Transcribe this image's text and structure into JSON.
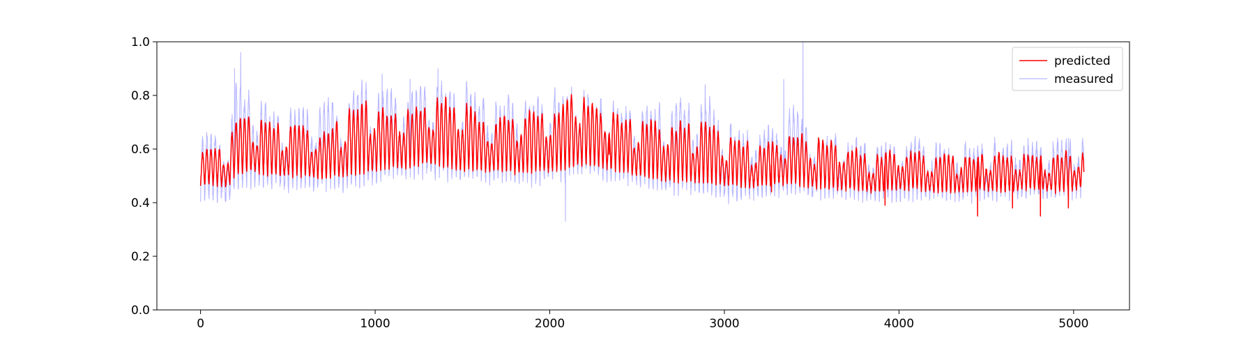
{
  "chart_data": {
    "type": "line",
    "title": "",
    "xlabel": "",
    "ylabel": "",
    "xlim": [
      -250,
      5320
    ],
    "ylim": [
      0.0,
      1.0
    ],
    "x_ticks": [
      0,
      1000,
      2000,
      3000,
      4000,
      5000
    ],
    "x_tick_labels": [
      "0",
      "1000",
      "2000",
      "3000",
      "4000",
      "5000"
    ],
    "y_ticks": [
      0.0,
      0.2,
      0.4,
      0.6,
      0.8,
      1.0
    ],
    "y_tick_labels": [
      "0.0",
      "0.2",
      "0.4",
      "0.6",
      "0.8",
      "1.0"
    ],
    "grid": false,
    "legend_position": "top-right",
    "n_points": 5060,
    "cycle_length": 24,
    "series": [
      {
        "name": "predicted",
        "color": "#ff0000",
        "opacity": 1.0,
        "envelope": {
          "x": [
            0,
            150,
            200,
            300,
            400,
            500,
            600,
            700,
            800,
            900,
            1000,
            1100,
            1200,
            1300,
            1400,
            1500,
            1600,
            1700,
            1800,
            1900,
            2000,
            2100,
            2150,
            2200,
            2300,
            2400,
            2500,
            2600,
            2700,
            2800,
            2900,
            3000,
            3100,
            3200,
            3300,
            3400,
            3500,
            3600,
            3700,
            3800,
            3900,
            4000,
            4100,
            4200,
            4300,
            4400,
            4500,
            4600,
            4700,
            4800,
            4900,
            5000,
            5060
          ],
          "low": [
            0.47,
            0.46,
            0.5,
            0.52,
            0.5,
            0.5,
            0.5,
            0.49,
            0.5,
            0.51,
            0.52,
            0.53,
            0.53,
            0.55,
            0.53,
            0.52,
            0.52,
            0.52,
            0.51,
            0.51,
            0.52,
            0.52,
            0.54,
            0.54,
            0.53,
            0.52,
            0.5,
            0.49,
            0.48,
            0.48,
            0.47,
            0.47,
            0.46,
            0.46,
            0.47,
            0.47,
            0.46,
            0.45,
            0.45,
            0.44,
            0.44,
            0.45,
            0.45,
            0.44,
            0.44,
            0.44,
            0.45,
            0.44,
            0.45,
            0.45,
            0.44,
            0.45,
            0.46
          ],
          "high": [
            0.6,
            0.62,
            0.72,
            0.73,
            0.7,
            0.68,
            0.68,
            0.66,
            0.7,
            0.77,
            0.77,
            0.74,
            0.74,
            0.79,
            0.78,
            0.78,
            0.72,
            0.72,
            0.73,
            0.73,
            0.74,
            0.78,
            0.82,
            0.79,
            0.75,
            0.72,
            0.71,
            0.7,
            0.69,
            0.7,
            0.71,
            0.65,
            0.63,
            0.62,
            0.63,
            0.65,
            0.64,
            0.63,
            0.6,
            0.59,
            0.58,
            0.59,
            0.59,
            0.58,
            0.58,
            0.57,
            0.58,
            0.58,
            0.59,
            0.58,
            0.58,
            0.59,
            0.58
          ]
        },
        "spikes": [
          [
            4450,
            0.35
          ],
          [
            4810,
            0.35
          ],
          [
            3920,
            0.39
          ],
          [
            4650,
            0.38
          ],
          [
            4970,
            0.38
          ],
          [
            2340,
            0.58
          ],
          [
            3270,
            0.44
          ]
        ]
      },
      {
        "name": "measured",
        "color": "#9999ff",
        "opacity": 0.7,
        "envelope": {
          "x": [
            0,
            150,
            200,
            300,
            400,
            500,
            600,
            700,
            800,
            900,
            1000,
            1100,
            1200,
            1300,
            1400,
            1500,
            1600,
            1700,
            1800,
            1900,
            2000,
            2100,
            2150,
            2200,
            2300,
            2400,
            2500,
            2600,
            2700,
            2800,
            2900,
            3000,
            3100,
            3200,
            3300,
            3400,
            3500,
            3600,
            3700,
            3800,
            3900,
            4000,
            4100,
            4200,
            4300,
            4400,
            4500,
            4600,
            4700,
            4800,
            4900,
            5000,
            5060
          ],
          "low": [
            0.42,
            0.41,
            0.45,
            0.47,
            0.46,
            0.46,
            0.46,
            0.46,
            0.46,
            0.46,
            0.48,
            0.5,
            0.5,
            0.51,
            0.5,
            0.49,
            0.49,
            0.49,
            0.49,
            0.48,
            0.49,
            0.49,
            0.52,
            0.51,
            0.5,
            0.49,
            0.47,
            0.46,
            0.45,
            0.45,
            0.43,
            0.42,
            0.42,
            0.43,
            0.44,
            0.44,
            0.43,
            0.43,
            0.43,
            0.42,
            0.42,
            0.42,
            0.42,
            0.42,
            0.42,
            0.42,
            0.43,
            0.42,
            0.43,
            0.43,
            0.42,
            0.43,
            0.44
          ],
          "high": [
            0.64,
            0.66,
            0.83,
            0.8,
            0.74,
            0.72,
            0.74,
            0.76,
            0.76,
            0.82,
            0.83,
            0.82,
            0.8,
            0.85,
            0.83,
            0.83,
            0.78,
            0.77,
            0.79,
            0.79,
            0.8,
            0.81,
            0.82,
            0.8,
            0.77,
            0.76,
            0.76,
            0.76,
            0.76,
            0.8,
            0.79,
            0.69,
            0.68,
            0.66,
            0.68,
            0.74,
            0.68,
            0.64,
            0.62,
            0.61,
            0.61,
            0.62,
            0.62,
            0.61,
            0.61,
            0.6,
            0.61,
            0.61,
            0.62,
            0.61,
            0.62,
            0.63,
            0.61
          ]
        },
        "spikes": [
          [
            230,
            0.96
          ],
          [
            195,
            0.9
          ],
          [
            1040,
            0.88
          ],
          [
            1360,
            0.9
          ],
          [
            2090,
            0.33
          ],
          [
            3450,
            1.0
          ],
          [
            2890,
            0.84
          ],
          [
            3340,
            0.86
          ],
          [
            1200,
            0.86
          ],
          [
            4970,
            0.64
          ]
        ]
      }
    ]
  }
}
